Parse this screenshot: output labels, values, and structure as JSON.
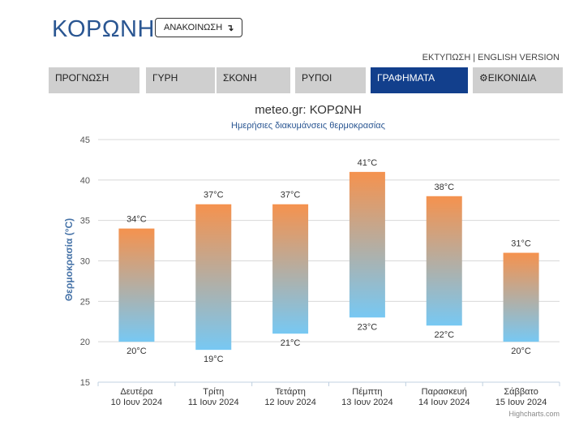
{
  "header": {
    "city": "ΚΟΡΩΝΗ",
    "announce_label": "ΑΝΑΚΟΙΝΩΣΗ",
    "announce_icon": "arrow-down-icon",
    "print_link": "ΕΚΤΥΠΩΣΗ",
    "separator": "|",
    "english_link": "ENGLISH VERSION"
  },
  "tabs": [
    {
      "label": "ΠΡΟΓΝΩΣΗ",
      "active": false
    },
    {
      "label": "ΓΥΡΗ",
      "active": false
    },
    {
      "label": "ΣΚΟΝΗ",
      "active": false
    },
    {
      "label": "ΡΥΠΟΙ",
      "active": false
    },
    {
      "label": "ΓΡΑΦΗΜΑΤΑ",
      "active": true
    },
    {
      "label": "ΕΙΚΟΝΙΔΙΑ",
      "active": false,
      "icon": "gear-icon"
    }
  ],
  "colors": {
    "accent": "#123f8c",
    "bar_top": "#f5924e",
    "bar_bottom": "#77c8f3",
    "title": "#2a5692",
    "tab_inactive": "#cfcfcf"
  },
  "chart_data": {
    "type": "bar",
    "subtype": "columnrange",
    "title": "meteo.gr: ΚΟΡΩΝΗ",
    "subtitle": "Ημερήσιες διακυμάνσεις θερμοκρασίας",
    "xlabel": "",
    "ylabel": "Θερμοκρασία (°C)",
    "ylim": [
      15,
      45
    ],
    "yticks": [
      15,
      20,
      25,
      30,
      35,
      40,
      45
    ],
    "grid": true,
    "legend": "none",
    "categories": [
      {
        "day": "Δευτέρα",
        "date": "10 Ιουν 2024"
      },
      {
        "day": "Τρίτη",
        "date": "11 Ιουν 2024"
      },
      {
        "day": "Τετάρτη",
        "date": "12 Ιουν 2024"
      },
      {
        "day": "Πέμπτη",
        "date": "13 Ιουν 2024"
      },
      {
        "day": "Παρασκευή",
        "date": "14 Ιουν 2024"
      },
      {
        "day": "Σάββατο",
        "date": "15 Ιουν 2024"
      }
    ],
    "low": [
      20,
      19,
      21,
      23,
      22,
      20
    ],
    "high": [
      34,
      37,
      37,
      41,
      38,
      31
    ],
    "unit": "°C",
    "credit": "Highcharts.com"
  }
}
